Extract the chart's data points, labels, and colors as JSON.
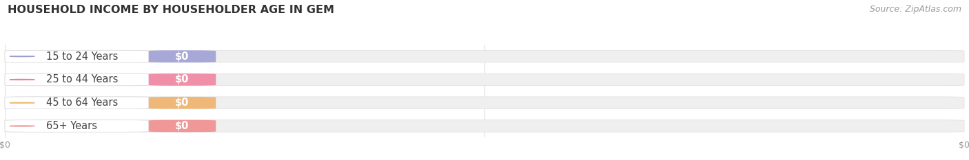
{
  "title": "HOUSEHOLD INCOME BY HOUSEHOLDER AGE IN GEM",
  "source": "Source: ZipAtlas.com",
  "categories": [
    "15 to 24 Years",
    "25 to 44 Years",
    "45 to 64 Years",
    "65+ Years"
  ],
  "values": [
    0,
    0,
    0,
    0
  ],
  "circle_colors": [
    "#a0a0cc",
    "#f08098",
    "#f0b870",
    "#f09898"
  ],
  "badge_colors": [
    "#a8a8d8",
    "#f090a8",
    "#f0b878",
    "#f09898"
  ],
  "pill_bg_color": "#f5f5f5",
  "pill_border_color": "#e0e0e0",
  "track_color": "#efefef",
  "track_border_color": "#e2e2e2",
  "badge_text_color": "#ffffff",
  "label_text_color": "#444444",
  "tick_color": "#999999",
  "title_color": "#333333",
  "source_color": "#999999",
  "background_color": "#ffffff",
  "title_fontsize": 11.5,
  "label_fontsize": 10.5,
  "badge_fontsize": 10.5,
  "tick_fontsize": 9,
  "source_fontsize": 9
}
